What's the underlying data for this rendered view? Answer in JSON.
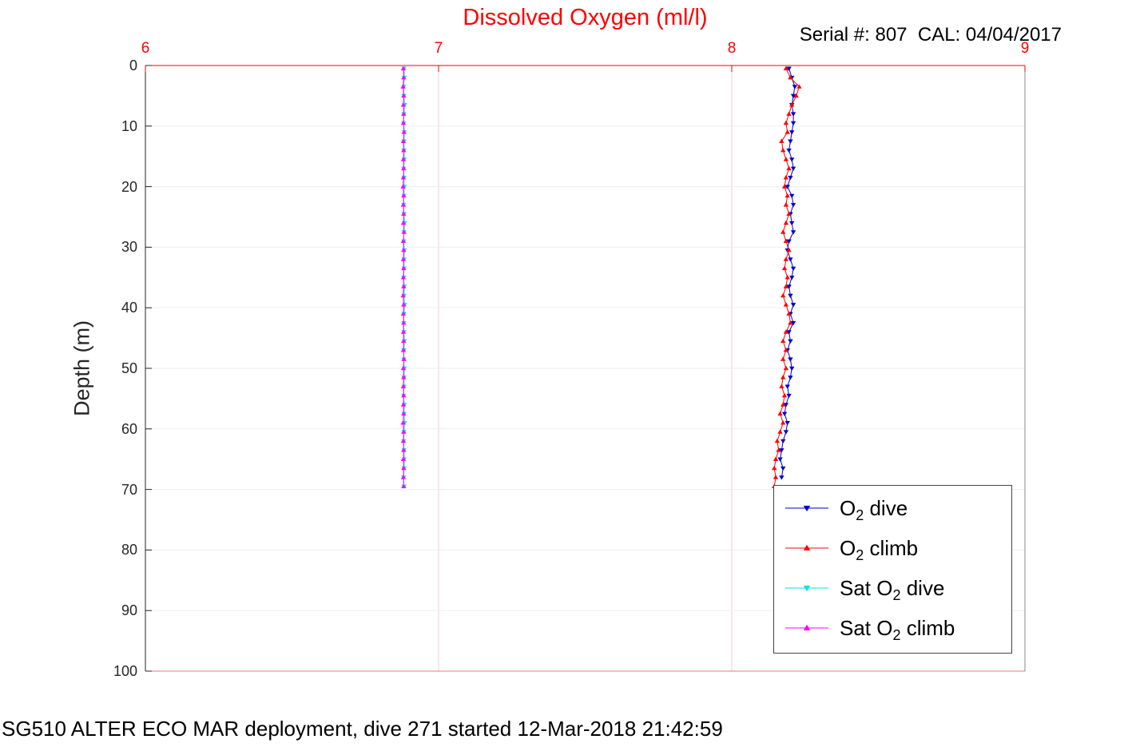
{
  "chart_data": {
    "type": "line",
    "title": "Dissolved Oxygen (ml/l)",
    "annotation": "Serial #: 807  CAL: 04/04/2017",
    "ylabel": "Depth (m)",
    "footer": "SG510 ALTER ECO MAR deployment, dive 271 started 12-Mar-2018 21:42:59",
    "x_axis": {
      "position": "top",
      "min": 6,
      "max": 9,
      "ticks": [
        6,
        7,
        8,
        9
      ],
      "color": "#ff0000"
    },
    "y_axis": {
      "min": 0,
      "max": 100,
      "ticks": [
        0,
        10,
        20,
        30,
        40,
        50,
        60,
        70,
        80,
        90,
        100
      ],
      "inverted": true,
      "color": "#262626"
    },
    "grid": {
      "vertical_color": "#f8cccc",
      "horizontal_color": "#ededed"
    },
    "legend_position": "lower-right",
    "series": [
      {
        "id": "o2-dive",
        "legend": {
          "pre": "O",
          "sub": "2",
          "post": " dive"
        },
        "color": "#0000cc",
        "marker": "triangle-down",
        "depth": [
          0.5,
          2,
          3.5,
          5,
          6.5,
          8,
          9.5,
          11,
          12.5,
          14,
          15.5,
          17,
          18.5,
          20,
          21.5,
          23,
          24.5,
          26,
          27.5,
          29,
          30.5,
          32,
          33.5,
          35,
          36.5,
          38,
          39.5,
          41,
          42.5,
          44,
          45.5,
          47,
          48.5,
          50,
          51.5,
          53,
          54.5,
          56,
          57.5,
          59,
          60.5,
          62,
          63.5,
          65,
          66.5,
          68
        ],
        "x": [
          8.195,
          8.205,
          8.215,
          8.21,
          8.205,
          8.21,
          8.21,
          8.205,
          8.2,
          8.195,
          8.205,
          8.21,
          8.2,
          8.19,
          8.205,
          8.21,
          8.2,
          8.205,
          8.21,
          8.195,
          8.19,
          8.2,
          8.21,
          8.205,
          8.195,
          8.2,
          8.21,
          8.2,
          8.21,
          8.195,
          8.2,
          8.19,
          8.2,
          8.205,
          8.2,
          8.19,
          8.195,
          8.185,
          8.18,
          8.19,
          8.185,
          8.175,
          8.17,
          8.165,
          8.175,
          8.17
        ]
      },
      {
        "id": "o2-climb",
        "legend": {
          "pre": "O",
          "sub": "2",
          "post": " climb"
        },
        "color": "#ff0000",
        "marker": "triangle-up",
        "depth": [
          0.5,
          2,
          3.5,
          5,
          6.5,
          8,
          9.5,
          11,
          12.5,
          14,
          15.5,
          17,
          18.5,
          20,
          21.5,
          23,
          24.5,
          26,
          27.5,
          29,
          30.5,
          32,
          33.5,
          35,
          36.5,
          38,
          39.5,
          41,
          42.5,
          44,
          45.5,
          47,
          48.5,
          50,
          51.5,
          53,
          54.5,
          56,
          57.5,
          59,
          60.5,
          62,
          63.5,
          65,
          66.5,
          68,
          69.5
        ],
        "x": [
          8.185,
          8.2,
          8.23,
          8.22,
          8.205,
          8.195,
          8.185,
          8.19,
          8.17,
          8.175,
          8.185,
          8.195,
          8.185,
          8.18,
          8.19,
          8.185,
          8.195,
          8.185,
          8.175,
          8.185,
          8.195,
          8.185,
          8.18,
          8.19,
          8.185,
          8.175,
          8.185,
          8.195,
          8.2,
          8.185,
          8.175,
          8.185,
          8.175,
          8.185,
          8.175,
          8.17,
          8.18,
          8.175,
          8.165,
          8.175,
          8.165,
          8.155,
          8.16,
          8.15,
          8.145,
          8.15,
          8.145
        ]
      },
      {
        "id": "sat-o2-dive",
        "legend": {
          "pre": "Sat O",
          "sub": "2",
          "post": " dive"
        },
        "color": "#00e5e5",
        "marker": "triangle-down",
        "depth": [
          0.5,
          2,
          3.5,
          5,
          6.5,
          8,
          9.5,
          11,
          12.5,
          14,
          15.5,
          17,
          18.5,
          20,
          21.5,
          23,
          24.5,
          26,
          27.5,
          29,
          30.5,
          32,
          33.5,
          35,
          36.5,
          38,
          39.5,
          41,
          42.5,
          44,
          45.5,
          47,
          48.5,
          50,
          51.5,
          53,
          54.5,
          56,
          57.5,
          59,
          60.5,
          62,
          63.5,
          65,
          66.5,
          68,
          69.5
        ],
        "x": [
          6.882,
          6.883,
          6.881,
          6.882,
          6.884,
          6.882,
          6.881,
          6.883,
          6.882,
          6.882,
          6.883,
          6.881,
          6.882,
          6.883,
          6.882,
          6.881,
          6.882,
          6.884,
          6.882,
          6.881,
          6.883,
          6.882,
          6.882,
          6.881,
          6.883,
          6.882,
          6.884,
          6.882,
          6.881,
          6.882,
          6.883,
          6.882,
          6.881,
          6.883,
          6.882,
          6.882,
          6.881,
          6.883,
          6.882,
          6.884,
          6.882,
          6.881,
          6.882,
          6.883,
          6.882,
          6.881,
          6.882
        ]
      },
      {
        "id": "sat-o2-climb",
        "legend": {
          "pre": "Sat O",
          "sub": "2",
          "post": " climb"
        },
        "color": "#ff00ff",
        "marker": "triangle-up",
        "depth": [
          0.5,
          2,
          3.5,
          5,
          6.5,
          8,
          9.5,
          11,
          12.5,
          14,
          15.5,
          17,
          18.5,
          20,
          21.5,
          23,
          24.5,
          26,
          27.5,
          29,
          30.5,
          32,
          33.5,
          35,
          36.5,
          38,
          39.5,
          41,
          42.5,
          44,
          45.5,
          47,
          48.5,
          50,
          51.5,
          53,
          54.5,
          56,
          57.5,
          59,
          60.5,
          62,
          63.5,
          65,
          66.5,
          68,
          69.5
        ],
        "x": [
          6.88,
          6.881,
          6.879,
          6.881,
          6.88,
          6.881,
          6.88,
          6.882,
          6.88,
          6.881,
          6.88,
          6.881,
          6.88,
          6.879,
          6.881,
          6.88,
          6.881,
          6.88,
          6.882,
          6.88,
          6.881,
          6.88,
          6.881,
          6.88,
          6.881,
          6.879,
          6.881,
          6.88,
          6.881,
          6.88,
          6.881,
          6.88,
          6.882,
          6.88,
          6.881,
          6.88,
          6.881,
          6.88,
          6.881,
          6.879,
          6.881,
          6.88,
          6.881,
          6.88,
          6.881,
          6.88,
          6.881
        ]
      }
    ]
  }
}
